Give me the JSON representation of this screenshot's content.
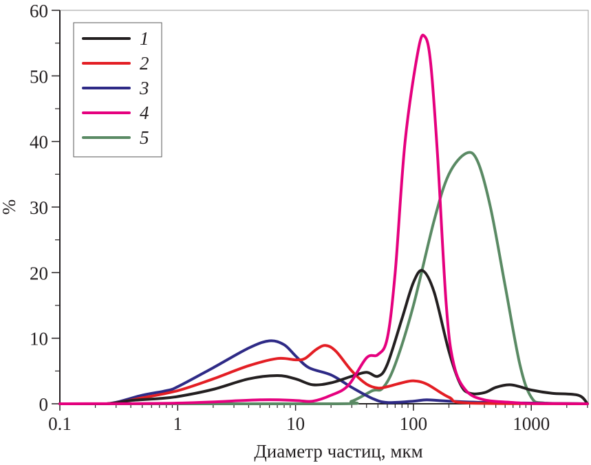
{
  "chart_data": {
    "type": "line",
    "xlabel": "Диаметр частиц, мкм",
    "ylabel": "%",
    "xscale": "log",
    "xlim": [
      0.1,
      3000
    ],
    "ylim": [
      0,
      60
    ],
    "xticks": [
      0.1,
      1,
      10,
      100,
      1000
    ],
    "xtick_labels": [
      "0.1",
      "1",
      "10",
      "100",
      "1000"
    ],
    "yticks": [
      0,
      10,
      20,
      30,
      40,
      50,
      60
    ],
    "ytick_labels": [
      "0",
      "10",
      "20",
      "30",
      "40",
      "50",
      "60"
    ],
    "grid": false,
    "legend_position": "top-left",
    "series": [
      {
        "name": "1",
        "color": "#231f20",
        "x": [
          0.1,
          0.25,
          0.4,
          0.7,
          1,
          2,
          4,
          7,
          10,
          14,
          20,
          30,
          40,
          50,
          60,
          80,
          100,
          120,
          150,
          200,
          250,
          300,
          400,
          500,
          650,
          800,
          1000,
          1500,
          2500,
          3000
        ],
        "y": [
          0,
          0,
          0.5,
          0.8,
          1.1,
          2.2,
          3.8,
          4.3,
          3.8,
          2.9,
          3.2,
          4.2,
          4.8,
          4.2,
          6,
          13,
          18.5,
          20.3,
          17,
          8,
          3,
          1.6,
          1.7,
          2.5,
          2.9,
          2.6,
          2.1,
          1.6,
          1.3,
          0
        ]
      },
      {
        "name": "2",
        "color": "#e31e24",
        "x": [
          0.1,
          0.25,
          0.5,
          1,
          2,
          4,
          7,
          10,
          12,
          15,
          18,
          22,
          30,
          40,
          50,
          60,
          80,
          100,
          130,
          200,
          300,
          3000
        ],
        "y": [
          0,
          0,
          0.9,
          2,
          3.8,
          5.8,
          6.9,
          6.7,
          6.9,
          8.3,
          8.9,
          8,
          5,
          3,
          2.4,
          2.6,
          3.2,
          3.5,
          3,
          1,
          0.1,
          0
        ]
      },
      {
        "name": "3",
        "color": "#2e2a86",
        "x": [
          0.1,
          0.25,
          0.5,
          0.8,
          1,
          2,
          4,
          6,
          8,
          10,
          13,
          20,
          30,
          45,
          60,
          100,
          130,
          200,
          400,
          1000,
          3000
        ],
        "y": [
          0,
          0,
          1.3,
          2,
          2.6,
          5.5,
          8.5,
          9.6,
          9,
          7.3,
          5.5,
          4.4,
          2.5,
          0.8,
          0.2,
          0.4,
          0.6,
          0.4,
          0.2,
          0.1,
          0
        ]
      },
      {
        "name": "4",
        "color": "#e5007e",
        "x": [
          0.1,
          1,
          5,
          10,
          14,
          20,
          28,
          40,
          50,
          60,
          70,
          85,
          110,
          125,
          140,
          160,
          190,
          220,
          280,
          400,
          700,
          1000,
          3000
        ],
        "y": [
          0,
          0.1,
          0.6,
          0.5,
          0.4,
          1.3,
          2.8,
          7,
          7.5,
          10,
          20,
          40,
          54,
          56,
          52,
          38,
          15,
          6,
          2,
          0.6,
          0.2,
          0.05,
          0
        ]
      },
      {
        "name": "5",
        "color": "#5a8a64",
        "x": [
          0.1,
          20,
          30,
          45,
          55,
          70,
          100,
          150,
          200,
          280,
          350,
          450,
          600,
          800,
          1000,
          1300,
          3000
        ],
        "y": [
          0,
          0,
          0.4,
          2,
          2.4,
          6,
          15,
          28,
          35,
          38.2,
          37,
          30,
          18,
          6,
          1,
          0.1,
          0
        ]
      }
    ]
  }
}
